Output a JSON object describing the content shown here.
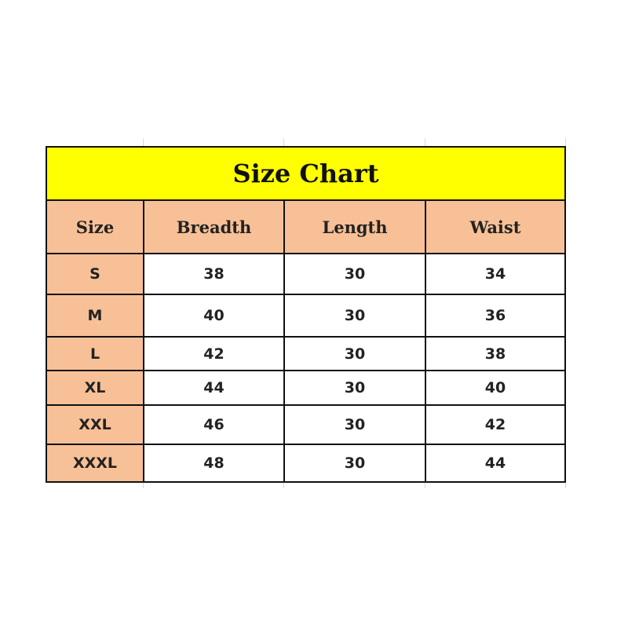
{
  "title": "Size Chart",
  "headers": [
    "Size",
    "Breadth",
    "Length",
    "Waist"
  ],
  "rows": [
    [
      "S",
      "38",
      "30",
      "34"
    ],
    [
      "M",
      "40",
      "30",
      "36"
    ],
    [
      "L",
      "42",
      "30",
      "38"
    ],
    [
      "XL",
      "44",
      "30",
      "40"
    ],
    [
      "XXL",
      "46",
      "30",
      "42"
    ],
    [
      "XXXL",
      "48",
      "30",
      "44"
    ]
  ],
  "colors": {
    "title_bg": "#ffff00",
    "header_bg": "#f8c096",
    "cell_bg": "#ffffff"
  }
}
